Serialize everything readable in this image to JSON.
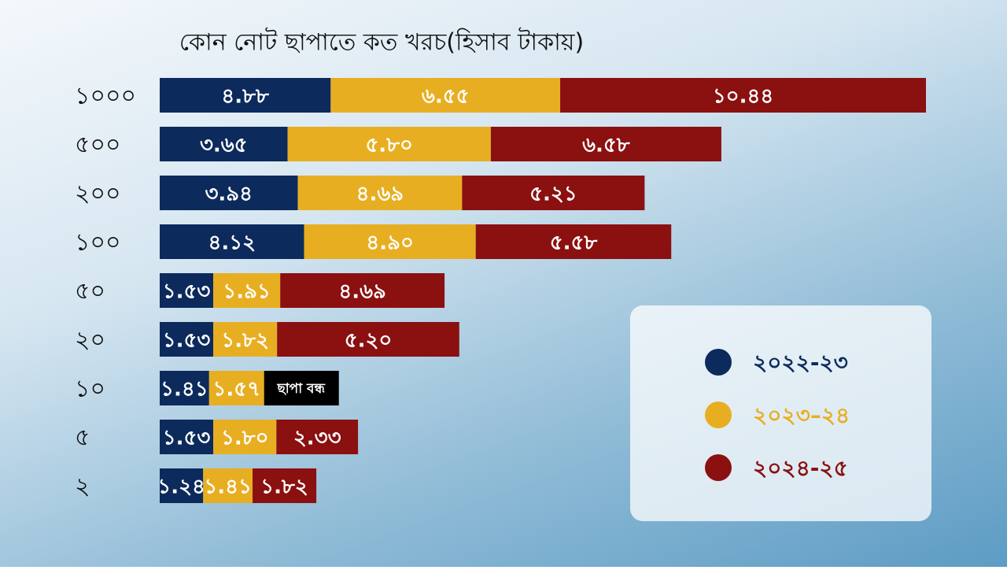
{
  "chart_data": {
    "type": "stacked-bar",
    "orientation": "horizontal",
    "title": "কোন নোট ছাপাতে কত খরচ(হিসাব টাকায়)",
    "categories": [
      "১০০০",
      "৫০০",
      "২০০",
      "১০০",
      "৫০",
      "২০",
      "১০",
      "৫",
      "২"
    ],
    "series": [
      {
        "name": "২০২২-২৩",
        "color": "#0c2a5c",
        "values": [
          4.88,
          3.65,
          3.94,
          4.12,
          1.53,
          1.53,
          1.41,
          1.53,
          1.24
        ],
        "value_labels": [
          "৪.৮৮",
          "৩.৬৫",
          "৩.৯৪",
          "৪.১২",
          "১.৫৩",
          "১.৫৩",
          "১.৪১",
          "১.৫৩",
          "১.২৪"
        ]
      },
      {
        "name": "২০২৩–২৪",
        "color": "#e8ae22",
        "values": [
          6.55,
          5.8,
          4.69,
          4.9,
          1.91,
          1.82,
          1.57,
          1.8,
          1.41
        ],
        "value_labels": [
          "৬.৫৫",
          "৫.৮০",
          "৪.৬৯",
          "৪.৯০",
          "১.৯১",
          "১.৮২",
          "১.৫৭",
          "১.৮০",
          "১.৪১"
        ]
      },
      {
        "name": "২০২৪-২৫",
        "color": "#8b1010",
        "values": [
          10.44,
          6.58,
          5.21,
          5.58,
          4.69,
          5.2,
          null,
          2.33,
          1.82
        ],
        "value_labels": [
          "১০.৪৪",
          "৬.৫৮",
          "৫.২১",
          "৫.৫৮",
          "৪.৬৯",
          "৫.২০",
          "ছাপা বন্ধ",
          "২.৩৩",
          "১.৮২"
        ]
      }
    ]
  }
}
